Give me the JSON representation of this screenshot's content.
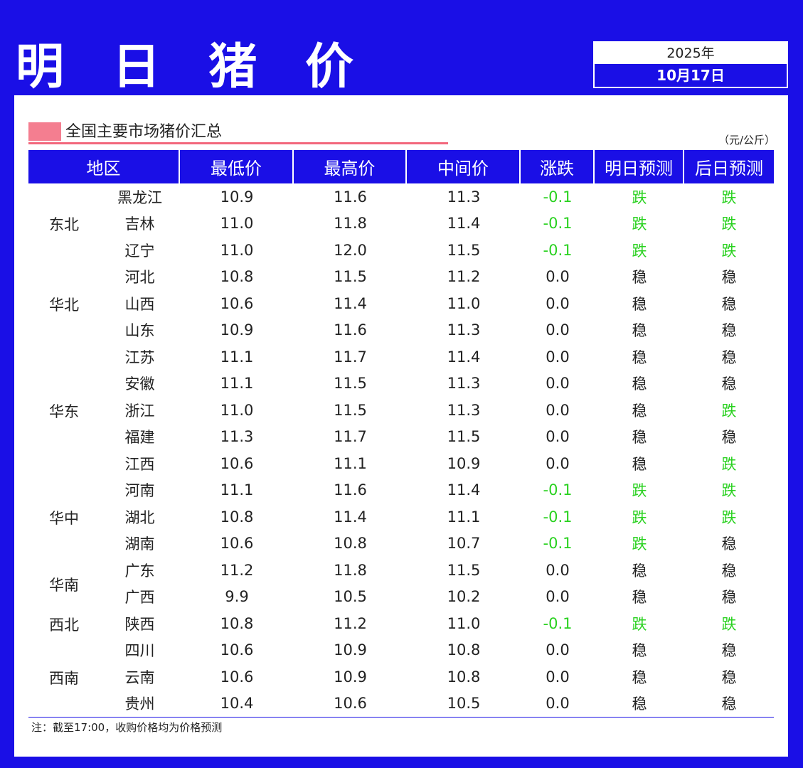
{
  "header": {
    "title": "明 日 猪 价",
    "year": "2025年",
    "date": "10月17日"
  },
  "section": {
    "subtitle": "全国主要市场猪价汇总",
    "unit": "（元/公斤）"
  },
  "columns": [
    "地区",
    "最低价",
    "最高价",
    "中间价",
    "涨跌",
    "明日预测",
    "后日预测"
  ],
  "regions": [
    {
      "name": "东北",
      "top": 0
    },
    {
      "name": "华北",
      "top": 0
    },
    {
      "name": "华东",
      "top": 0
    },
    {
      "name": "华中",
      "top": 0
    },
    {
      "name": "华南",
      "top": 0
    },
    {
      "name": "西北",
      "top": 0
    },
    {
      "name": "西南",
      "top": 0
    }
  ],
  "rows": [
    {
      "province": "黑龙江",
      "low": "10.9",
      "high": "11.6",
      "mid": "11.3",
      "change": "-0.1",
      "tomorrow": "跌",
      "after": "跌"
    },
    {
      "province": "吉林",
      "low": "11.0",
      "high": "11.8",
      "mid": "11.4",
      "change": "-0.1",
      "tomorrow": "跌",
      "after": "跌"
    },
    {
      "province": "辽宁",
      "low": "11.0",
      "high": "12.0",
      "mid": "11.5",
      "change": "-0.1",
      "tomorrow": "跌",
      "after": "跌"
    },
    {
      "province": "河北",
      "low": "10.8",
      "high": "11.5",
      "mid": "11.2",
      "change": "0.0",
      "tomorrow": "稳",
      "after": "稳"
    },
    {
      "province": "山西",
      "low": "10.6",
      "high": "11.4",
      "mid": "11.0",
      "change": "0.0",
      "tomorrow": "稳",
      "after": "稳"
    },
    {
      "province": "山东",
      "low": "10.9",
      "high": "11.6",
      "mid": "11.3",
      "change": "0.0",
      "tomorrow": "稳",
      "after": "稳"
    },
    {
      "province": "江苏",
      "low": "11.1",
      "high": "11.7",
      "mid": "11.4",
      "change": "0.0",
      "tomorrow": "稳",
      "after": "稳"
    },
    {
      "province": "安徽",
      "low": "11.1",
      "high": "11.5",
      "mid": "11.3",
      "change": "0.0",
      "tomorrow": "稳",
      "after": "稳"
    },
    {
      "province": "浙江",
      "low": "11.0",
      "high": "11.5",
      "mid": "11.3",
      "change": "0.0",
      "tomorrow": "稳",
      "after": "跌"
    },
    {
      "province": "福建",
      "low": "11.3",
      "high": "11.7",
      "mid": "11.5",
      "change": "0.0",
      "tomorrow": "稳",
      "after": "稳"
    },
    {
      "province": "江西",
      "low": "10.6",
      "high": "11.1",
      "mid": "10.9",
      "change": "0.0",
      "tomorrow": "稳",
      "after": "跌"
    },
    {
      "province": "河南",
      "low": "11.1",
      "high": "11.6",
      "mid": "11.4",
      "change": "-0.1",
      "tomorrow": "跌",
      "after": "跌"
    },
    {
      "province": "湖北",
      "low": "10.8",
      "high": "11.4",
      "mid": "11.1",
      "change": "-0.1",
      "tomorrow": "跌",
      "after": "跌"
    },
    {
      "province": "湖南",
      "low": "10.6",
      "high": "10.8",
      "mid": "10.7",
      "change": "-0.1",
      "tomorrow": "跌",
      "after": "稳"
    },
    {
      "province": "广东",
      "low": "11.2",
      "high": "11.8",
      "mid": "11.5",
      "change": "0.0",
      "tomorrow": "稳",
      "after": "稳"
    },
    {
      "province": "广西",
      "low": "9.9",
      "high": "10.5",
      "mid": "10.2",
      "change": "0.0",
      "tomorrow": "稳",
      "after": "稳"
    },
    {
      "province": "陕西",
      "low": "10.8",
      "high": "11.2",
      "mid": "11.0",
      "change": "-0.1",
      "tomorrow": "跌",
      "after": "跌"
    },
    {
      "province": "四川",
      "low": "10.6",
      "high": "10.9",
      "mid": "10.8",
      "change": "0.0",
      "tomorrow": "稳",
      "after": "稳"
    },
    {
      "province": "云南",
      "low": "10.6",
      "high": "10.9",
      "mid": "10.8",
      "change": "0.0",
      "tomorrow": "稳",
      "after": "稳"
    },
    {
      "province": "贵州",
      "low": "10.4",
      "high": "10.6",
      "mid": "10.5",
      "change": "0.0",
      "tomorrow": "稳",
      "after": "稳"
    }
  ],
  "note": "注：截至17:00，收购价格均为价格预测",
  "colors": {
    "brand_blue": "#1a0fe6",
    "down_green": "#29d11f",
    "accent_rose": "#f2677c"
  }
}
